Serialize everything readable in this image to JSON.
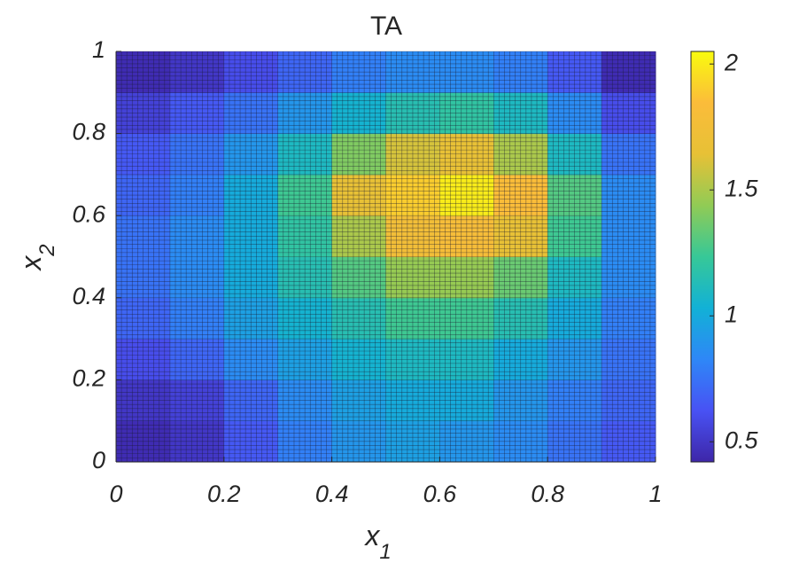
{
  "chart_data": {
    "type": "heatmap",
    "title": "TA",
    "xlabel": "x",
    "xlabel_sub": "1",
    "ylabel": "x",
    "ylabel_sub": "2",
    "x": [
      0.05,
      0.15,
      0.25,
      0.35,
      0.45,
      0.55,
      0.65,
      0.75,
      0.85,
      0.95
    ],
    "y": [
      0.05,
      0.15,
      0.25,
      0.35,
      0.45,
      0.55,
      0.65,
      0.75,
      0.85,
      0.95
    ],
    "z": [
      [
        0.45,
        0.5,
        0.65,
        0.8,
        0.9,
        0.95,
        0.9,
        0.85,
        0.75,
        0.65
      ],
      [
        0.5,
        0.55,
        0.7,
        0.85,
        0.95,
        1.0,
        1.0,
        0.9,
        0.8,
        0.7
      ],
      [
        0.6,
        0.7,
        0.85,
        0.95,
        1.05,
        1.1,
        1.1,
        1.0,
        0.9,
        0.75
      ],
      [
        0.7,
        0.8,
        0.95,
        1.05,
        1.15,
        1.25,
        1.25,
        1.15,
        1.0,
        0.8
      ],
      [
        0.75,
        0.85,
        1.0,
        1.15,
        1.3,
        1.45,
        1.45,
        1.35,
        1.1,
        0.85
      ],
      [
        0.75,
        0.85,
        1.0,
        1.2,
        1.5,
        1.75,
        1.8,
        1.65,
        1.25,
        0.85
      ],
      [
        0.7,
        0.8,
        1.0,
        1.25,
        1.65,
        1.9,
        2.0,
        1.85,
        1.3,
        0.85
      ],
      [
        0.65,
        0.75,
        0.9,
        1.1,
        1.4,
        1.6,
        1.65,
        1.5,
        1.1,
        0.75
      ],
      [
        0.55,
        0.65,
        0.75,
        0.9,
        1.05,
        1.15,
        1.2,
        1.1,
        0.85,
        0.6
      ],
      [
        0.45,
        0.5,
        0.6,
        0.7,
        0.8,
        0.85,
        0.85,
        0.8,
        0.65,
        0.45
      ]
    ],
    "xlim": [
      0,
      1
    ],
    "ylim": [
      0,
      1
    ],
    "xticks": [
      0,
      0.2,
      0.4,
      0.6,
      0.8,
      1
    ],
    "yticks": [
      0,
      0.2,
      0.4,
      0.6,
      0.8,
      1
    ],
    "clim": [
      0.42,
      2.05
    ],
    "cticks": [
      0.5,
      1,
      1.5,
      2
    ],
    "colormap": [
      "#3e26a8",
      "#4852f4",
      "#2e87f7",
      "#12b1d6",
      "#37c897",
      "#91cb55",
      "#e7c136",
      "#fbbc3a",
      "#f9fb0e"
    ],
    "mesh": true
  }
}
